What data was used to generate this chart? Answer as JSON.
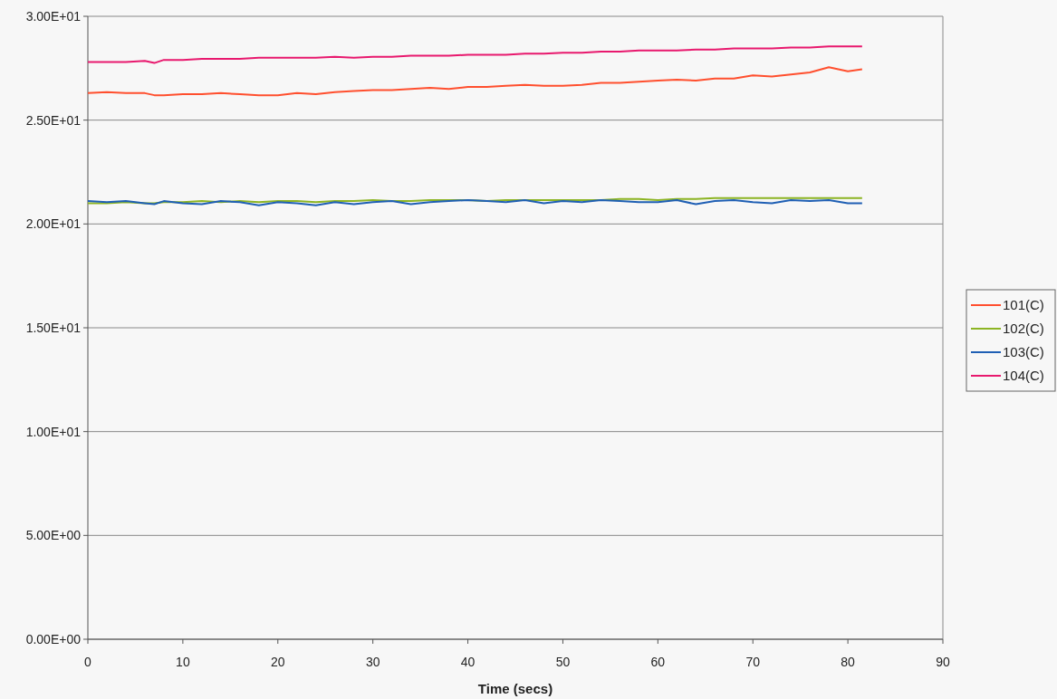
{
  "chart_data": {
    "type": "line",
    "xlabel": "Time (secs)",
    "xlim": [
      0,
      90
    ],
    "xticks": [
      0,
      10,
      20,
      30,
      40,
      50,
      60,
      70,
      80,
      90
    ],
    "ylim": [
      0,
      30
    ],
    "yticks": [
      {
        "value": 0,
        "label": "0.00E+00"
      },
      {
        "value": 5,
        "label": "5.00E+00"
      },
      {
        "value": 10,
        "label": "1.00E+01"
      },
      {
        "value": 15,
        "label": "1.50E+01"
      },
      {
        "value": 20,
        "label": "2.00E+01"
      },
      {
        "value": 25,
        "label": "2.50E+01"
      },
      {
        "value": 30,
        "label": "3.00E+01"
      }
    ],
    "grid": "y",
    "legend": "right",
    "marker": "none",
    "line_style": "solid",
    "x": [
      0,
      2,
      4,
      6,
      7,
      8,
      10,
      12,
      14,
      16,
      18,
      20,
      22,
      24,
      26,
      28,
      30,
      32,
      34,
      36,
      38,
      40,
      42,
      44,
      46,
      48,
      50,
      52,
      54,
      56,
      58,
      60,
      62,
      64,
      66,
      68,
      70,
      72,
      74,
      76,
      78,
      80,
      81.5
    ],
    "series": [
      {
        "name": "101(C)",
        "color": "#ff4f2e",
        "values": [
          26.3,
          26.35,
          26.3,
          26.3,
          26.2,
          26.2,
          26.25,
          26.25,
          26.3,
          26.25,
          26.2,
          26.2,
          26.3,
          26.25,
          26.35,
          26.4,
          26.45,
          26.45,
          26.5,
          26.55,
          26.5,
          26.6,
          26.6,
          26.65,
          26.7,
          26.65,
          26.65,
          26.7,
          26.8,
          26.8,
          26.85,
          26.9,
          26.95,
          26.9,
          27.0,
          27.0,
          27.15,
          27.1,
          27.2,
          27.3,
          27.55,
          27.35,
          27.45
        ]
      },
      {
        "name": "102(C)",
        "color": "#8cb423",
        "values": [
          21.0,
          21.0,
          21.05,
          21.0,
          21.0,
          21.05,
          21.05,
          21.1,
          21.05,
          21.1,
          21.05,
          21.1,
          21.1,
          21.05,
          21.1,
          21.1,
          21.15,
          21.1,
          21.1,
          21.15,
          21.15,
          21.15,
          21.1,
          21.15,
          21.15,
          21.15,
          21.15,
          21.15,
          21.15,
          21.2,
          21.2,
          21.15,
          21.2,
          21.2,
          21.25,
          21.25,
          21.25,
          21.25,
          21.25,
          21.25,
          21.25,
          21.25,
          21.25
        ]
      },
      {
        "name": "103(C)",
        "color": "#1f5fb4",
        "values": [
          21.1,
          21.05,
          21.1,
          21.0,
          20.95,
          21.1,
          21.0,
          20.95,
          21.1,
          21.05,
          20.9,
          21.05,
          21.0,
          20.9,
          21.05,
          20.95,
          21.05,
          21.1,
          20.95,
          21.05,
          21.1,
          21.15,
          21.1,
          21.05,
          21.15,
          21.0,
          21.1,
          21.05,
          21.15,
          21.1,
          21.05,
          21.05,
          21.15,
          20.95,
          21.1,
          21.15,
          21.05,
          21.0,
          21.15,
          21.1,
          21.15,
          21.0,
          21.0
        ]
      },
      {
        "name": "104(C)",
        "color": "#e8196e",
        "values": [
          27.8,
          27.8,
          27.8,
          27.85,
          27.75,
          27.9,
          27.9,
          27.95,
          27.95,
          27.95,
          28.0,
          28.0,
          28.0,
          28.0,
          28.05,
          28.0,
          28.05,
          28.05,
          28.1,
          28.1,
          28.1,
          28.15,
          28.15,
          28.15,
          28.2,
          28.2,
          28.25,
          28.25,
          28.3,
          28.3,
          28.35,
          28.35,
          28.35,
          28.4,
          28.4,
          28.45,
          28.45,
          28.45,
          28.5,
          28.5,
          28.55,
          28.55,
          28.55
        ]
      }
    ]
  }
}
